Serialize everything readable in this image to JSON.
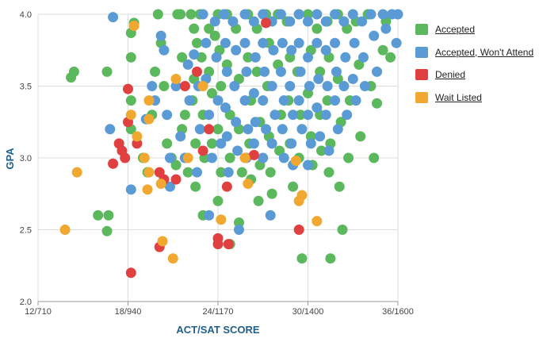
{
  "chart_data": {
    "type": "scatter",
    "xlabel": "ACT/SAT SCORE",
    "ylabel": "GPA",
    "x_ticks": [
      {
        "value": 12,
        "label": "12/710"
      },
      {
        "value": 18,
        "label": "18/940"
      },
      {
        "value": 24,
        "label": "24/1170"
      },
      {
        "value": 30,
        "label": "30/1400"
      },
      {
        "value": 36,
        "label": "36/1600"
      }
    ],
    "y_ticks": [
      "2.0",
      "2.5",
      "3.0",
      "3.5",
      "4.0"
    ],
    "xlim": [
      12,
      36
    ],
    "ylim": [
      2.0,
      4.0
    ],
    "grid": true,
    "legend_position": "right",
    "series": [
      {
        "name": "Accepted",
        "color": "#5cb85c",
        "points": [
          [
            14.2,
            3.56
          ],
          [
            14.4,
            3.6
          ],
          [
            16.0,
            2.6
          ],
          [
            16.7,
            2.6
          ],
          [
            16.6,
            2.49
          ],
          [
            16.6,
            3.6
          ],
          [
            18.2,
            3.87
          ],
          [
            18.2,
            3.7
          ],
          [
            18.2,
            3.4
          ],
          [
            18.2,
            3.2
          ],
          [
            18.4,
            3.94
          ],
          [
            19.0,
            3.0
          ],
          [
            19.3,
            2.9
          ],
          [
            19.8,
            3.6
          ],
          [
            19.6,
            3.3
          ],
          [
            20.0,
            4.0
          ],
          [
            20.2,
            3.8
          ],
          [
            20.4,
            3.5
          ],
          [
            20.6,
            3.1
          ],
          [
            20.9,
            3.0
          ],
          [
            21.2,
            2.95
          ],
          [
            21.3,
            4.0
          ],
          [
            21.5,
            4.0
          ],
          [
            21.6,
            3.7
          ],
          [
            21.8,
            3.3
          ],
          [
            21.6,
            3.2
          ],
          [
            22.0,
            2.9
          ],
          [
            22.2,
            4.0
          ],
          [
            22.4,
            3.9
          ],
          [
            22.6,
            3.8
          ],
          [
            22.4,
            3.55
          ],
          [
            22.3,
            3.4
          ],
          [
            22.5,
            3.1
          ],
          [
            22.5,
            2.8
          ],
          [
            22.8,
            4.0
          ],
          [
            22.9,
            3.7
          ],
          [
            23.0,
            3.3
          ],
          [
            23.1,
            3.0
          ],
          [
            23.0,
            2.6
          ],
          [
            23.4,
            3.9
          ],
          [
            23.4,
            3.6
          ],
          [
            23.6,
            3.45
          ],
          [
            23.6,
            3.1
          ],
          [
            23.8,
            3.85
          ],
          [
            24.0,
            4.0
          ],
          [
            24.1,
            3.75
          ],
          [
            24.2,
            3.5
          ],
          [
            24.0,
            3.2
          ],
          [
            24.2,
            2.9
          ],
          [
            24.0,
            2.7
          ],
          [
            24.6,
            4.0
          ],
          [
            24.6,
            3.65
          ],
          [
            24.8,
            3.3
          ],
          [
            24.8,
            3.0
          ],
          [
            24.8,
            2.4
          ],
          [
            25.2,
            3.9
          ],
          [
            25.4,
            3.55
          ],
          [
            25.4,
            3.2
          ],
          [
            25.6,
            2.9
          ],
          [
            25.4,
            2.55
          ],
          [
            26.0,
            4.0
          ],
          [
            26.0,
            3.7
          ],
          [
            26.2,
            3.4
          ],
          [
            26.1,
            3.1
          ],
          [
            26.2,
            2.85
          ],
          [
            26.6,
            3.9
          ],
          [
            26.6,
            3.6
          ],
          [
            26.8,
            3.25
          ],
          [
            26.8,
            2.95
          ],
          [
            26.7,
            2.7
          ],
          [
            27.2,
            4.0
          ],
          [
            27.4,
            3.8
          ],
          [
            27.3,
            3.5
          ],
          [
            27.4,
            3.15
          ],
          [
            27.5,
            2.9
          ],
          [
            27.6,
            2.75
          ],
          [
            28.0,
            4.0
          ],
          [
            28.0,
            3.65
          ],
          [
            28.2,
            3.3
          ],
          [
            28.1,
            3.05
          ],
          [
            28.6,
            3.95
          ],
          [
            28.8,
            3.7
          ],
          [
            28.7,
            3.4
          ],
          [
            28.8,
            3.1
          ],
          [
            29.0,
            2.8
          ],
          [
            29.4,
            4.0
          ],
          [
            29.3,
            3.6
          ],
          [
            29.5,
            3.3
          ],
          [
            29.4,
            3.0
          ],
          [
            29.6,
            2.3
          ],
          [
            30.0,
            4.0
          ],
          [
            30.2,
            3.75
          ],
          [
            30.0,
            3.45
          ],
          [
            30.2,
            3.15
          ],
          [
            30.3,
            2.95
          ],
          [
            30.6,
            3.9
          ],
          [
            30.8,
            3.6
          ],
          [
            30.8,
            3.3
          ],
          [
            30.9,
            3.05
          ],
          [
            31.3,
            3.95
          ],
          [
            31.4,
            3.7
          ],
          [
            31.3,
            3.4
          ],
          [
            31.5,
            3.1
          ],
          [
            31.4,
            2.9
          ],
          [
            31.5,
            2.3
          ],
          [
            32.0,
            4.0
          ],
          [
            32.0,
            3.55
          ],
          [
            32.2,
            3.25
          ],
          [
            32.1,
            2.8
          ],
          [
            32.3,
            2.5
          ],
          [
            32.6,
            3.9
          ],
          [
            32.8,
            3.4
          ],
          [
            32.7,
            3.0
          ],
          [
            33.2,
            3.95
          ],
          [
            33.4,
            3.65
          ],
          [
            33.5,
            3.15
          ],
          [
            34.0,
            4.0
          ],
          [
            34.2,
            3.5
          ],
          [
            34.6,
            3.38
          ],
          [
            34.4,
            3.0
          ],
          [
            35.0,
            3.75
          ],
          [
            35.2,
            3.95
          ],
          [
            35.5,
            3.7
          ]
        ]
      },
      {
        "name": "Accepted, Won't Attend",
        "color": "#5b9bd5",
        "points": [
          [
            17.0,
            3.98
          ],
          [
            16.8,
            3.2
          ],
          [
            18.2,
            2.78
          ],
          [
            19.2,
            3.27
          ],
          [
            19.8,
            3.4
          ],
          [
            19.6,
            3.5
          ],
          [
            20.2,
            3.85
          ],
          [
            20.4,
            3.75
          ],
          [
            20.6,
            3.3
          ],
          [
            20.8,
            3.0
          ],
          [
            20.8,
            2.8
          ],
          [
            21.2,
            3.5
          ],
          [
            21.5,
            3.15
          ],
          [
            21.8,
            3.0
          ],
          [
            22.0,
            3.65
          ],
          [
            22.1,
            3.4
          ],
          [
            22.4,
            3.72
          ],
          [
            22.7,
            3.5
          ],
          [
            22.8,
            3.2
          ],
          [
            22.6,
            2.9
          ],
          [
            23.0,
            4.0
          ],
          [
            23.2,
            3.8
          ],
          [
            23.2,
            3.55
          ],
          [
            23.4,
            3.3
          ],
          [
            23.6,
            3.0
          ],
          [
            23.4,
            2.6
          ],
          [
            23.8,
            3.95
          ],
          [
            23.9,
            3.7
          ],
          [
            24.0,
            3.4
          ],
          [
            24.2,
            3.1
          ],
          [
            24.4,
            4.0
          ],
          [
            24.5,
            3.8
          ],
          [
            24.6,
            3.6
          ],
          [
            24.5,
            3.35
          ],
          [
            24.6,
            3.15
          ],
          [
            24.7,
            2.9
          ],
          [
            25.0,
            3.95
          ],
          [
            25.2,
            3.75
          ],
          [
            25.1,
            3.5
          ],
          [
            25.2,
            3.25
          ],
          [
            25.3,
            3.05
          ],
          [
            25.4,
            2.5
          ],
          [
            25.8,
            4.0
          ],
          [
            25.8,
            3.8
          ],
          [
            25.9,
            3.6
          ],
          [
            25.8,
            3.4
          ],
          [
            26.0,
            3.2
          ],
          [
            25.9,
            3.0
          ],
          [
            26.4,
            3.95
          ],
          [
            26.5,
            3.7
          ],
          [
            26.4,
            3.45
          ],
          [
            26.5,
            3.25
          ],
          [
            26.4,
            3.1
          ],
          [
            27.0,
            4.0
          ],
          [
            27.0,
            3.8
          ],
          [
            27.1,
            3.6
          ],
          [
            27.0,
            3.4
          ],
          [
            27.2,
            3.2
          ],
          [
            27.0,
            3.0
          ],
          [
            27.6,
            3.95
          ],
          [
            27.7,
            3.75
          ],
          [
            27.6,
            3.5
          ],
          [
            27.8,
            3.3
          ],
          [
            27.6,
            3.1
          ],
          [
            27.5,
            2.6
          ],
          [
            28.2,
            4.0
          ],
          [
            28.3,
            3.8
          ],
          [
            28.2,
            3.6
          ],
          [
            28.4,
            3.4
          ],
          [
            28.3,
            3.2
          ],
          [
            28.4,
            3.0
          ],
          [
            28.8,
            3.95
          ],
          [
            28.9,
            3.75
          ],
          [
            28.8,
            3.5
          ],
          [
            29.0,
            3.3
          ],
          [
            28.9,
            3.1
          ],
          [
            29.0,
            2.95
          ],
          [
            29.4,
            4.0
          ],
          [
            29.4,
            3.8
          ],
          [
            29.5,
            3.6
          ],
          [
            29.4,
            3.4
          ],
          [
            29.6,
            3.2
          ],
          [
            30.0,
            3.95
          ],
          [
            30.0,
            3.7
          ],
          [
            30.1,
            3.5
          ],
          [
            30.0,
            3.3
          ],
          [
            30.2,
            3.1
          ],
          [
            30.0,
            2.95
          ],
          [
            30.6,
            4.0
          ],
          [
            30.6,
            3.8
          ],
          [
            30.7,
            3.55
          ],
          [
            30.6,
            3.35
          ],
          [
            30.8,
            3.15
          ],
          [
            31.2,
            3.95
          ],
          [
            31.2,
            3.75
          ],
          [
            31.3,
            3.5
          ],
          [
            31.2,
            3.3
          ],
          [
            31.4,
            3.05
          ],
          [
            31.8,
            4.0
          ],
          [
            31.8,
            3.8
          ],
          [
            31.9,
            3.6
          ],
          [
            31.8,
            3.4
          ],
          [
            32.0,
            3.2
          ],
          [
            32.4,
            3.95
          ],
          [
            32.5,
            3.7
          ],
          [
            32.4,
            3.5
          ],
          [
            32.6,
            3.3
          ],
          [
            33.0,
            4.0
          ],
          [
            33.1,
            3.8
          ],
          [
            33.0,
            3.55
          ],
          [
            33.2,
            3.4
          ],
          [
            33.6,
            3.95
          ],
          [
            33.7,
            3.7
          ],
          [
            33.8,
            3.5
          ],
          [
            34.2,
            4.0
          ],
          [
            34.4,
            3.85
          ],
          [
            34.6,
            3.6
          ],
          [
            35.0,
            4.0
          ],
          [
            35.2,
            3.9
          ],
          [
            35.6,
            4.0
          ],
          [
            36.0,
            4.0
          ],
          [
            35.9,
            3.8
          ]
        ]
      },
      {
        "name": "Denied",
        "color": "#e04040",
        "points": [
          [
            17.4,
            3.1
          ],
          [
            17.0,
            2.96
          ],
          [
            17.6,
            3.05
          ],
          [
            17.8,
            3.0
          ],
          [
            18.0,
            3.48
          ],
          [
            18.0,
            3.25
          ],
          [
            18.2,
            2.2
          ],
          [
            18.6,
            3.1
          ],
          [
            20.1,
            2.9
          ],
          [
            20.4,
            2.85
          ],
          [
            20.1,
            2.38
          ],
          [
            21.2,
            2.85
          ],
          [
            21.8,
            3.5
          ],
          [
            22.6,
            3.6
          ],
          [
            23.0,
            3.05
          ],
          [
            23.4,
            3.2
          ],
          [
            24.0,
            2.4
          ],
          [
            24.0,
            2.44
          ],
          [
            24.6,
            2.8
          ],
          [
            24.7,
            2.4
          ],
          [
            26.4,
            3.02
          ],
          [
            27.2,
            3.94
          ],
          [
            29.4,
            2.5
          ]
        ]
      },
      {
        "name": "Wait Listed",
        "color": "#f0a830",
        "points": [
          [
            13.8,
            2.5
          ],
          [
            14.6,
            2.9
          ],
          [
            18.2,
            3.3
          ],
          [
            18.4,
            3.92
          ],
          [
            18.6,
            3.15
          ],
          [
            19.1,
            3.0
          ],
          [
            19.4,
            3.4
          ],
          [
            19.4,
            3.27
          ],
          [
            19.4,
            2.9
          ],
          [
            19.3,
            2.78
          ],
          [
            20.2,
            2.82
          ],
          [
            20.3,
            2.42
          ],
          [
            21.2,
            3.55
          ],
          [
            21.0,
            2.3
          ],
          [
            22.0,
            3.0
          ],
          [
            23.0,
            3.5
          ],
          [
            24.2,
            2.57
          ],
          [
            25.8,
            3.0
          ],
          [
            26.0,
            2.82
          ],
          [
            29.4,
            2.7
          ],
          [
            29.2,
            2.98
          ],
          [
            30.6,
            2.56
          ],
          [
            29.6,
            2.74
          ]
        ]
      }
    ]
  }
}
